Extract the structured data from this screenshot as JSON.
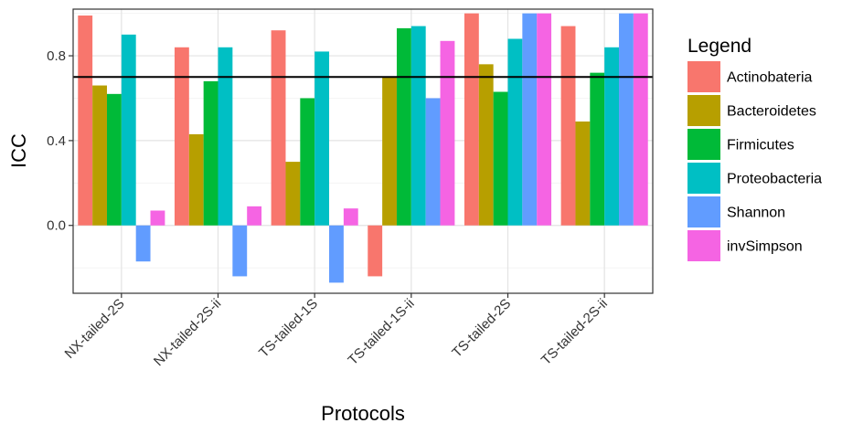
{
  "chart_data": {
    "type": "bar",
    "xlabel": "Protocols",
    "ylabel": "ICC",
    "ylim": [
      -0.32,
      1.02
    ],
    "yticks": [
      0.0,
      0.4,
      0.8
    ],
    "ytick_labels": [
      "0.0",
      "0.4",
      "0.8"
    ],
    "grid": true,
    "legend_title": "Legend",
    "legend_position": "right",
    "reference_line": 0.7,
    "categories": [
      "NX-tailed-2S",
      "NX-tailed-2S-ii",
      "TS-tailed-1S",
      "TS-tailed-1S-ii",
      "TS-tailed-2S",
      "TS-tailed-2S-ii"
    ],
    "series": [
      {
        "name": "Actinobateria",
        "color": "#F8766D",
        "values": [
          0.99,
          0.84,
          0.92,
          -0.24,
          1.0,
          0.94
        ]
      },
      {
        "name": "Bacteroidetes",
        "color": "#B79F00",
        "values": [
          0.66,
          0.43,
          0.3,
          0.7,
          0.76,
          0.49
        ]
      },
      {
        "name": "Firmicutes",
        "color": "#00BA38",
        "values": [
          0.62,
          0.68,
          0.6,
          0.93,
          0.63,
          0.72
        ]
      },
      {
        "name": "Proteobacteria",
        "color": "#00BFC4",
        "values": [
          0.9,
          0.84,
          0.82,
          0.94,
          0.88,
          0.84
        ]
      },
      {
        "name": "Shannon",
        "color": "#619CFF",
        "values": [
          -0.17,
          -0.24,
          -0.27,
          0.6,
          1.0,
          1.0
        ]
      },
      {
        "name": "invSimpson",
        "color": "#F564E3",
        "values": [
          0.07,
          0.09,
          0.08,
          0.87,
          1.0,
          1.0
        ]
      }
    ]
  }
}
